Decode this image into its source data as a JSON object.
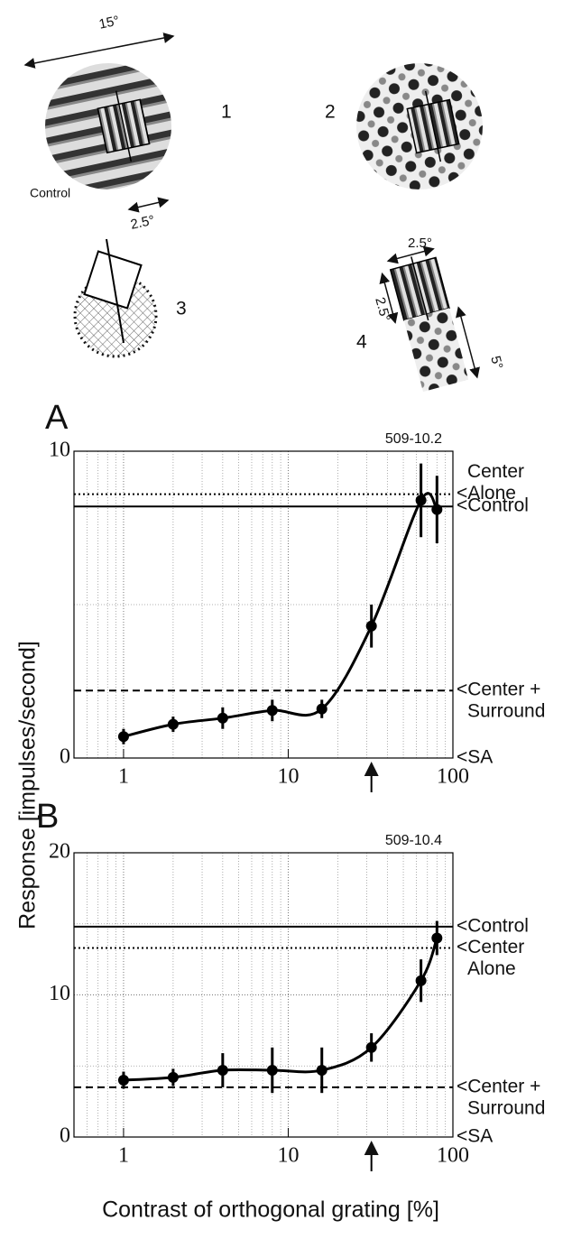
{
  "stimuli": {
    "size_label": "15°",
    "panel1": "1",
    "panel2": "2",
    "control_label": "Control",
    "center_size": "2.5°",
    "panel3": "3",
    "panel4": "4",
    "width_label": "2.5°",
    "height_label": "2.5°",
    "surround_label": "5°"
  },
  "axis_labels": {
    "y": "Response [impulses/second]",
    "x": "Contrast of orthogonal grating [%]"
  },
  "chart_data": [
    {
      "type": "line",
      "panel": "A",
      "id_label": "509-10.2",
      "log_x": true,
      "grid": true,
      "color": "#000000",
      "xlim": [
        0.5,
        100
      ],
      "xticks": [
        1,
        10,
        100
      ],
      "xminorticks": [
        0.5,
        0.6,
        0.7,
        0.8,
        0.9,
        2,
        3,
        4,
        5,
        6,
        7,
        8,
        9,
        20,
        30,
        40,
        50,
        60,
        70,
        80,
        90
      ],
      "ylim": [
        0,
        10
      ],
      "yticks": [
        0,
        10
      ],
      "yminorticks": [
        5
      ],
      "x": [
        1,
        2,
        4,
        8,
        16,
        32,
        64,
        80
      ],
      "values": [
        0.7,
        1.1,
        1.3,
        1.55,
        1.6,
        4.3,
        8.4,
        8.1
      ],
      "errors": [
        0.25,
        0.25,
        0.35,
        0.35,
        0.3,
        0.7,
        1.2,
        1.1
      ],
      "reference_lines": [
        {
          "label_lines": [
            "Center",
            "<Alone"
          ],
          "value": 8.6,
          "style": "dotted"
        },
        {
          "label_lines": [
            "<Control"
          ],
          "value": 8.2,
          "style": "solid"
        },
        {
          "label_lines": [
            "<Center +",
            "Surround"
          ],
          "value": 2.2,
          "style": "dashed"
        },
        {
          "label_lines": [
            "<SA"
          ],
          "value": 0,
          "style": "none"
        }
      ],
      "arrow_x": 32
    },
    {
      "type": "line",
      "panel": "B",
      "id_label": "509-10.4",
      "log_x": true,
      "grid": true,
      "color": "#000000",
      "xlim": [
        0.5,
        100
      ],
      "xticks": [
        1,
        10,
        100
      ],
      "xminorticks": [
        0.5,
        0.6,
        0.7,
        0.8,
        0.9,
        2,
        3,
        4,
        5,
        6,
        7,
        8,
        9,
        20,
        30,
        40,
        50,
        60,
        70,
        80,
        90
      ],
      "ylim": [
        0,
        20
      ],
      "yticks": [
        0,
        10,
        20
      ],
      "yminorticks": [
        5,
        15
      ],
      "x": [
        1,
        2,
        4,
        8,
        16,
        32,
        64,
        80
      ],
      "values": [
        4.0,
        4.2,
        4.7,
        4.7,
        4.7,
        6.3,
        11,
        14
      ],
      "errors": [
        0.6,
        0.6,
        1.2,
        1.6,
        1.6,
        1.0,
        1.5,
        1.2
      ],
      "reference_lines": [
        {
          "label_lines": [
            "<Control"
          ],
          "value": 14.8,
          "style": "solid"
        },
        {
          "label_lines": [
            "<Center",
            "Alone"
          ],
          "value": 13.3,
          "style": "dotted"
        },
        {
          "label_lines": [
            "<Center +",
            "Surround"
          ],
          "value": 3.5,
          "style": "dashed"
        },
        {
          "label_lines": [
            "<SA"
          ],
          "value": 0,
          "style": "none"
        }
      ],
      "arrow_x": 32
    }
  ]
}
